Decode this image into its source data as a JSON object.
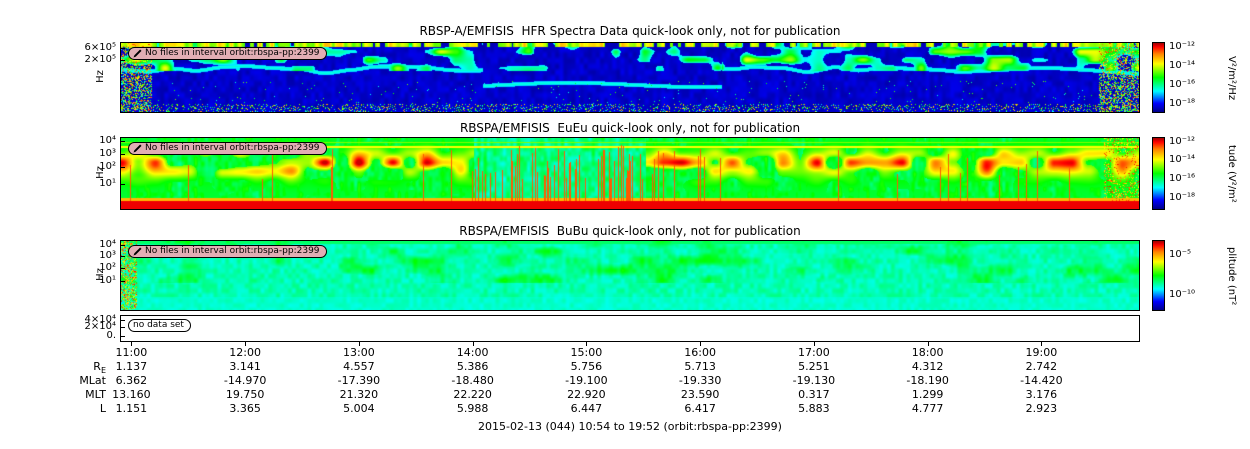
{
  "figure": {
    "caption": "2015-02-13 (044) 10:54 to 19:52 (orbit:rbspa-pp:2399)"
  },
  "colors": {
    "annotation_bg": "#e2aeb4",
    "colormap": [
      {
        "t": 0.0,
        "c": "#00008f"
      },
      {
        "t": 0.12,
        "c": "#0000ff"
      },
      {
        "t": 0.3,
        "c": "#00ffff"
      },
      {
        "t": 0.5,
        "c": "#00ff00"
      },
      {
        "t": 0.7,
        "c": "#ffff00"
      },
      {
        "t": 0.85,
        "c": "#ff8000"
      },
      {
        "t": 0.95,
        "c": "#ff0000"
      },
      {
        "t": 1.0,
        "c": "#aa0000"
      }
    ]
  },
  "time_axis": {
    "start": "10:54",
    "end": "19:52",
    "ticks": [
      "11:00",
      "12:00",
      "13:00",
      "14:00",
      "15:00",
      "16:00",
      "17:00",
      "18:00",
      "19:00"
    ]
  },
  "chart_data": [
    {
      "type": "heatmap",
      "panel": "HFR",
      "title": "RBSP-A/EMFISIS  HFR Spectra Data quick-look only, not for publication",
      "ylabel": "Hz",
      "yticks": [
        "6×10⁵",
        "2×10⁵"
      ],
      "y_scale": "log",
      "x_range": [
        "10:54",
        "19:52"
      ],
      "annotation": "No files in interval orbit:rbspa-pp:2399",
      "colorbar": {
        "ticks": [
          "10⁻¹²",
          "10⁻¹⁴",
          "10⁻¹⁶",
          "10⁻¹⁸"
        ],
        "range": [
          1e-18,
          1e-12
        ],
        "label": "V²/m²/Hz"
      },
      "summary": "dark blue background; green/yellow patches in upper half; wavy cyan emission line near mid-height that steps lower between about 14:00 and 16:10; colorful speckle along bottom and both edges"
    },
    {
      "type": "heatmap",
      "panel": "EuEu",
      "title": "RBSPA/EMFISIS  EuEu quick-look only, not for publication",
      "ylabel": "Hz",
      "yticks": [
        "10⁴",
        "10³",
        "10²",
        "10¹"
      ],
      "y_scale": "log",
      "x_range": [
        "10:54",
        "19:52"
      ],
      "annotation": "No files in interval orbit:rbspa-pp:2399",
      "colorbar": {
        "ticks": [
          "10⁻¹²",
          "10⁻¹⁴",
          "10⁻¹⁶",
          "10⁻¹⁸"
        ],
        "range": [
          1e-18,
          1e-12
        ],
        "label": "tude (V²/m²"
      },
      "summary": "green background with vertical striping; broad orange-red enhancement bands before 14:00 and after 15:30; thin yellow line near top; solid red band along bottom; dense red burst columns between 14:00 and 15:30"
    },
    {
      "type": "heatmap",
      "panel": "BuBu",
      "title": "RBSPA/EMFISIS  BuBu quick-look only, not for publication",
      "ylabel": "Hz",
      "yticks": [
        "10⁴",
        "10³",
        "10²",
        "10¹"
      ],
      "y_scale": "log",
      "x_range": [
        "10:54",
        "19:52"
      ],
      "annotation": "No files in interval orbit:rbspa-pp:2399",
      "colorbar": {
        "ticks": [
          "10⁻⁵",
          "10⁻¹⁰"
        ],
        "range": [
          1e-10,
          1e-05
        ],
        "label": "plitude (nT²"
      },
      "summary": "fairly uniform cyan-green with diffuse green patches in the upper half and colorful speckle at the left edge"
    },
    {
      "type": "empty",
      "panel": "bottom-strip",
      "yticks": [
        "4×10⁴",
        "2×10⁴",
        "0."
      ],
      "annotation": "no data set"
    },
    {
      "type": "table",
      "panel": "ephemeris",
      "columns": [
        "11:00",
        "12:00",
        "13:00",
        "14:00",
        "15:00",
        "16:00",
        "17:00",
        "18:00",
        "19:00"
      ],
      "rows": [
        {
          "label": "R",
          "sub": "E",
          "values": [
            "1.137",
            "3.141",
            "4.557",
            "5.386",
            "5.756",
            "5.713",
            "5.251",
            "4.312",
            "2.742"
          ]
        },
        {
          "label": "MLat",
          "sub": "",
          "values": [
            "6.362",
            "-14.970",
            "-17.390",
            "-18.480",
            "-19.100",
            "-19.330",
            "-19.130",
            "-18.190",
            "-14.420"
          ]
        },
        {
          "label": "MLT",
          "sub": "",
          "values": [
            "13.160",
            "19.750",
            "21.320",
            "22.220",
            "22.920",
            "23.590",
            "0.317",
            "1.299",
            "3.176"
          ]
        },
        {
          "label": "L",
          "sub": "",
          "values": [
            "1.151",
            "3.365",
            "5.004",
            "5.988",
            "6.447",
            "6.417",
            "5.883",
            "4.777",
            "2.923"
          ]
        }
      ]
    }
  ]
}
